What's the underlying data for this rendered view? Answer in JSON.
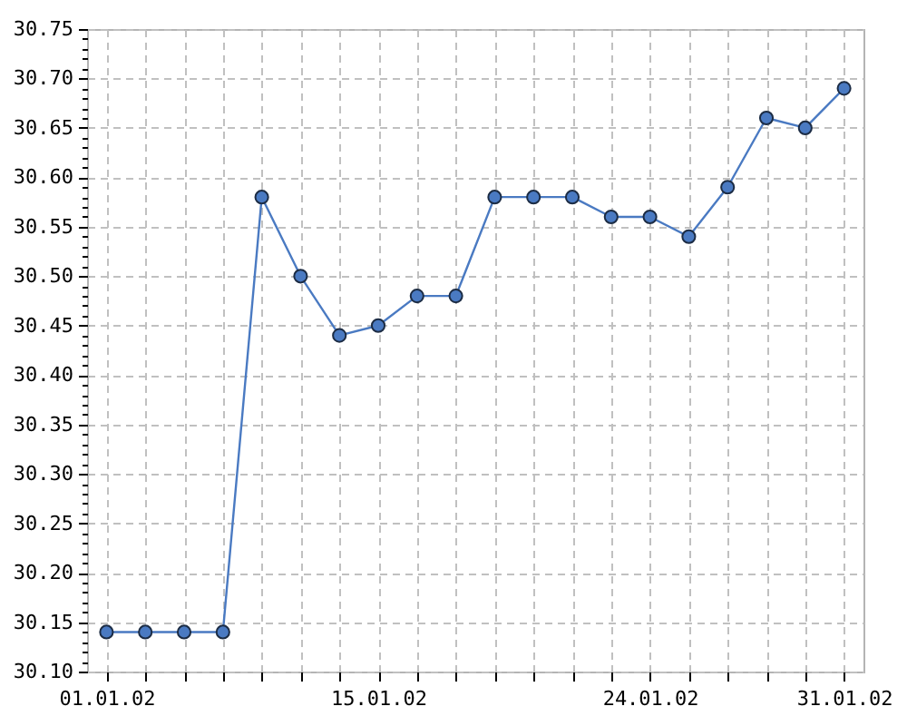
{
  "chart_data": {
    "type": "line",
    "categories": [
      "01.01.02",
      null,
      null,
      null,
      null,
      null,
      null,
      "15.01.02",
      null,
      null,
      null,
      null,
      null,
      null,
      "24.01.02",
      null,
      null,
      null,
      null,
      "31.01.02"
    ],
    "series": [
      {
        "color": "#4a7ac2",
        "values": [
          30.14,
          30.14,
          30.14,
          30.14,
          30.58,
          30.5,
          30.44,
          30.45,
          30.48,
          30.48,
          30.58,
          30.58,
          30.58,
          30.56,
          30.56,
          30.54,
          30.59,
          30.66,
          30.65,
          30.69
        ]
      }
    ],
    "ylim": [
      30.1,
      30.75
    ],
    "yticks": [
      {
        "value": 30.1,
        "label": "30.10"
      },
      {
        "value": 30.11,
        "label": null
      },
      {
        "value": 30.12,
        "label": null
      },
      {
        "value": 30.13,
        "label": null
      },
      {
        "value": 30.14,
        "label": null
      },
      {
        "value": 30.15,
        "label": "30.15"
      },
      {
        "value": 30.16,
        "label": null
      },
      {
        "value": 30.17,
        "label": null
      },
      {
        "value": 30.18,
        "label": null
      },
      {
        "value": 30.19,
        "label": null
      },
      {
        "value": 30.2,
        "label": "30.20"
      },
      {
        "value": 30.21,
        "label": null
      },
      {
        "value": 30.22,
        "label": null
      },
      {
        "value": 30.23,
        "label": null
      },
      {
        "value": 30.24,
        "label": null
      },
      {
        "value": 30.25,
        "label": "30.25"
      },
      {
        "value": 30.26,
        "label": null
      },
      {
        "value": 30.27,
        "label": null
      },
      {
        "value": 30.28,
        "label": null
      },
      {
        "value": 30.29,
        "label": null
      },
      {
        "value": 30.3,
        "label": "30.30"
      },
      {
        "value": 30.31,
        "label": null
      },
      {
        "value": 30.32,
        "label": null
      },
      {
        "value": 30.33,
        "label": null
      },
      {
        "value": 30.34,
        "label": null
      },
      {
        "value": 30.35,
        "label": "30.35"
      },
      {
        "value": 30.36,
        "label": null
      },
      {
        "value": 30.37,
        "label": null
      },
      {
        "value": 30.38,
        "label": null
      },
      {
        "value": 30.39,
        "label": null
      },
      {
        "value": 30.4,
        "label": "30.40"
      },
      {
        "value": 30.41,
        "label": null
      },
      {
        "value": 30.42,
        "label": null
      },
      {
        "value": 30.43,
        "label": null
      },
      {
        "value": 30.44,
        "label": null
      },
      {
        "value": 30.45,
        "label": "30.45"
      },
      {
        "value": 30.46,
        "label": null
      },
      {
        "value": 30.47,
        "label": null
      },
      {
        "value": 30.48,
        "label": null
      },
      {
        "value": 30.49,
        "label": null
      },
      {
        "value": 30.5,
        "label": "30.50"
      },
      {
        "value": 30.51,
        "label": null
      },
      {
        "value": 30.52,
        "label": null
      },
      {
        "value": 30.53,
        "label": null
      },
      {
        "value": 30.54,
        "label": null
      },
      {
        "value": 30.55,
        "label": "30.55"
      },
      {
        "value": 30.56,
        "label": null
      },
      {
        "value": 30.57,
        "label": null
      },
      {
        "value": 30.58,
        "label": null
      },
      {
        "value": 30.59,
        "label": null
      },
      {
        "value": 30.6,
        "label": "30.60"
      },
      {
        "value": 30.61,
        "label": null
      },
      {
        "value": 30.62,
        "label": null
      },
      {
        "value": 30.63,
        "label": null
      },
      {
        "value": 30.64,
        "label": null
      },
      {
        "value": 30.65,
        "label": "30.65"
      },
      {
        "value": 30.66,
        "label": null
      },
      {
        "value": 30.67,
        "label": null
      },
      {
        "value": 30.68,
        "label": null
      },
      {
        "value": 30.69,
        "label": null
      },
      {
        "value": 30.7,
        "label": "30.70"
      },
      {
        "value": 30.71,
        "label": null
      },
      {
        "value": 30.72,
        "label": null
      },
      {
        "value": 30.73,
        "label": null
      },
      {
        "value": 30.74,
        "label": null
      },
      {
        "value": 30.75,
        "label": "30.75"
      }
    ],
    "grid": true,
    "marker": "circle",
    "line_style": "solid"
  }
}
